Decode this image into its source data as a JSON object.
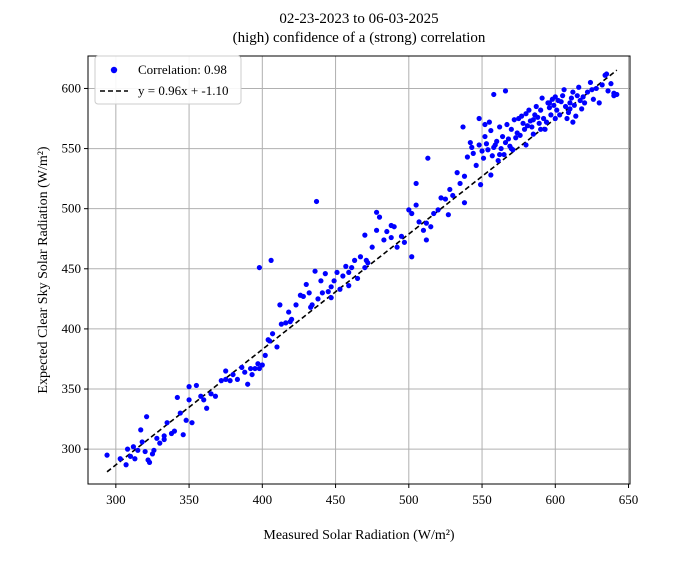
{
  "chart_data": {
    "type": "scatter",
    "title_line1": "02-23-2023 to 06-03-2025",
    "title_line2": "(high) confidence of a (strong) correlation",
    "xlabel": "Measured Solar Radiation (W/m²)",
    "ylabel": "Expected Clear Sky Solar Radiation (W/m²)",
    "xlim": [
      281,
      651
    ],
    "ylim": [
      271,
      627
    ],
    "x_ticks": [
      300,
      350,
      400,
      450,
      500,
      550,
      600,
      650
    ],
    "y_ticks": [
      300,
      350,
      400,
      450,
      500,
      550,
      600
    ],
    "grid": true,
    "legend_position": "top-left",
    "colors": {
      "points": "#0000ff",
      "fit_line": "#000000"
    },
    "series": [
      {
        "name": "Correlation: 0.98",
        "kind": "scatter",
        "x": [
          294,
          303,
          307,
          308,
          310,
          312,
          313,
          315,
          317,
          318,
          320,
          322,
          323,
          325,
          326,
          328,
          330,
          333,
          335,
          338,
          340,
          342,
          344,
          346,
          348,
          350,
          352,
          355,
          358,
          362,
          365,
          368,
          372,
          375,
          378,
          380,
          383,
          386,
          388,
          390,
          393,
          395,
          397,
          398,
          400,
          402,
          405,
          407,
          410,
          413,
          416,
          418,
          420,
          423,
          426,
          428,
          430,
          432,
          434,
          436,
          438,
          440,
          441,
          443,
          445,
          447,
          449,
          451,
          453,
          455,
          457,
          459,
          461,
          463,
          465,
          467,
          470,
          472,
          475,
          478,
          480,
          483,
          485,
          488,
          490,
          492,
          495,
          497,
          500,
          502,
          505,
          507,
          510,
          512,
          515,
          517,
          520,
          522,
          525,
          528,
          530,
          533,
          535,
          538,
          540,
          542,
          544,
          546,
          548,
          550,
          551,
          552,
          553,
          554,
          555,
          556,
          557,
          558,
          559,
          560,
          561,
          562,
          563,
          564,
          565,
          566,
          567,
          568,
          569,
          570,
          571,
          572,
          573,
          574,
          575,
          576,
          577,
          578,
          579,
          580,
          581,
          582,
          583,
          584,
          585,
          586,
          587,
          588,
          589,
          590,
          591,
          592,
          593,
          594,
          595,
          596,
          597,
          598,
          599,
          600,
          601,
          602,
          603,
          604,
          605,
          606,
          607,
          608,
          609,
          610,
          611,
          612,
          613,
          614,
          615,
          616,
          617,
          618,
          619,
          620,
          622,
          624,
          626,
          628,
          630,
          632,
          634,
          636,
          638,
          640,
          642,
          437,
          398,
          406,
          513,
          537,
          566,
          558,
          548,
          552,
          505,
          478,
          470,
          412,
          360,
          375,
          392,
          350,
          333,
          321,
          543,
          580,
          590,
          600,
          610,
          625,
          635,
          640,
          612,
          596,
          585,
          570,
          562,
          556,
          549,
          538,
          527,
          512,
          502,
          488,
          471,
          459,
          447,
          433,
          419,
          404
        ],
        "y": [
          295,
          292,
          287,
          300,
          294,
          302,
          292,
          299,
          316,
          306,
          298,
          291,
          289,
          296,
          299,
          309,
          305,
          311,
          322,
          313,
          315,
          343,
          330,
          312,
          324,
          352,
          322,
          353,
          344,
          334,
          346,
          344,
          357,
          365,
          357,
          362,
          358,
          368,
          364,
          354,
          362,
          367,
          371,
          367,
          370,
          378,
          390,
          396,
          385,
          404,
          405,
          414,
          408,
          420,
          428,
          427,
          437,
          430,
          420,
          448,
          425,
          440,
          430,
          446,
          431,
          426,
          440,
          447,
          433,
          444,
          452,
          436,
          451,
          457,
          442,
          460,
          451,
          455,
          468,
          482,
          493,
          474,
          481,
          486,
          485,
          468,
          477,
          472,
          499,
          496,
          503,
          489,
          482,
          488,
          485,
          496,
          499,
          509,
          508,
          516,
          511,
          530,
          521,
          527,
          543,
          555,
          546,
          536,
          553,
          548,
          542,
          560,
          554,
          549,
          572,
          565,
          544,
          551,
          553,
          556,
          540,
          568,
          550,
          560,
          545,
          555,
          570,
          558,
          552,
          566,
          549,
          574,
          559,
          563,
          575,
          561,
          577,
          571,
          566,
          579,
          569,
          582,
          573,
          568,
          574,
          578,
          585,
          576,
          571,
          582,
          592,
          575,
          566,
          572,
          588,
          584,
          578,
          591,
          586,
          593,
          582,
          590,
          578,
          589,
          594,
          599,
          585,
          575,
          580,
          588,
          592,
          597,
          586,
          577,
          594,
          601,
          590,
          583,
          593,
          588,
          597,
          605,
          591,
          600,
          588,
          603,
          611,
          598,
          604,
          596,
          595,
          506,
          451,
          457,
          542,
          568,
          598,
          595,
          575,
          570,
          521,
          497,
          478,
          420,
          341,
          358,
          367,
          341,
          308,
          327,
          551,
          553,
          566,
          575,
          583,
          599,
          612,
          594,
          572,
          588,
          562,
          550,
          545,
          528,
          520,
          505,
          495,
          474,
          460,
          476,
          457,
          447,
          435,
          418,
          406,
          391
        ]
      },
      {
        "name": "y = 0.96x + -1.10",
        "kind": "line",
        "slope": 0.96,
        "intercept": -1.1,
        "x_range": [
          294,
          642
        ]
      }
    ]
  }
}
